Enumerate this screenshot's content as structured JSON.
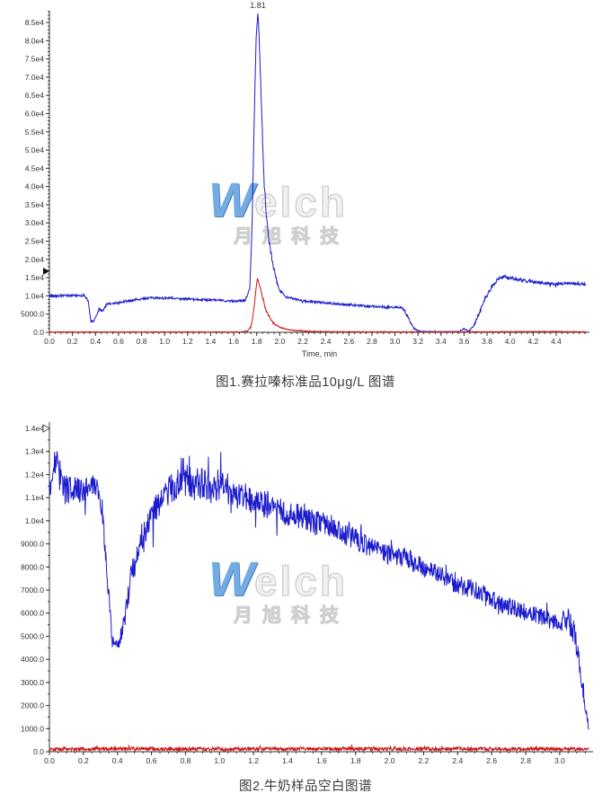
{
  "watermark": {
    "brand_initial": "W",
    "brand_rest": "elch",
    "subtitle": "月旭科技",
    "brand_color": "#5a9ede",
    "outline_color": "#c3c3c3"
  },
  "chart_data": [
    {
      "type": "line",
      "caption": "图1.赛拉嗪标准品10μg/L 图谱",
      "xlabel": "Time, min",
      "ylabel": "",
      "xlim": [
        0,
        4.66
      ],
      "ylim": [
        0,
        88500
      ],
      "x_major": 0.2,
      "x_minor": 0.05,
      "x_tick_labels": [
        "0.0",
        "0.2",
        "0.4",
        "0.6",
        "0.8",
        "1.0",
        "1.2",
        "1.4",
        "1.6",
        "1.8",
        "2.0",
        "2.2",
        "2.4",
        "2.6",
        "2.8",
        "3.0",
        "3.2",
        "3.4",
        "3.6",
        "3.8",
        "4.0",
        "4.2",
        "4.4"
      ],
      "y_major": 5000,
      "y_minor": 1000,
      "y_tick_labels": [
        "0.0",
        "5000.0",
        "1.0e4",
        "1.5e4",
        "2.0e4",
        "2.5e4",
        "3.0e4",
        "3.5e4",
        "4.0e4",
        "4.5e4",
        "5.0e4",
        "5.5e4",
        "6.0e4",
        "6.5e4",
        "7.0e4",
        "7.5e4",
        "8.0e4",
        "8.5e4"
      ],
      "annotations": [
        {
          "x": 1.81,
          "y": 88000,
          "text": "1.81"
        }
      ],
      "axis_marker": {
        "value": 16750,
        "style": "filled"
      },
      "axis_color": "#333333",
      "series": [
        {
          "name": "trace-blue",
          "color": "#1b1bcc",
          "seed": 42,
          "points": [
            [
              0.0,
              10000,
              350
            ],
            [
              0.3,
              10100,
              350
            ],
            [
              0.335,
              8800,
              400
            ],
            [
              0.36,
              2900,
              200
            ],
            [
              0.39,
              3300,
              250
            ],
            [
              0.43,
              6300,
              400
            ],
            [
              0.46,
              5800,
              350
            ],
            [
              0.5,
              7700,
              300
            ],
            [
              0.6,
              8100,
              300
            ],
            [
              0.7,
              8700,
              300
            ],
            [
              0.85,
              9400,
              300
            ],
            [
              1.0,
              9400,
              300
            ],
            [
              1.2,
              9100,
              300
            ],
            [
              1.4,
              8900,
              300
            ],
            [
              1.6,
              8500,
              300
            ],
            [
              1.7,
              8700,
              300
            ],
            [
              1.74,
              12000,
              500
            ],
            [
              1.76,
              30000,
              800
            ],
            [
              1.78,
              62000,
              1000
            ],
            [
              1.795,
              80000,
              800
            ],
            [
              1.81,
              88000,
              300
            ],
            [
              1.825,
              78000,
              800
            ],
            [
              1.84,
              62000,
              1200
            ],
            [
              1.86,
              45000,
              1200
            ],
            [
              1.88,
              33000,
              1000
            ],
            [
              1.91,
              24000,
              900
            ],
            [
              1.94,
              19000,
              800
            ],
            [
              1.97,
              14500,
              600
            ],
            [
              2.0,
              11500,
              400
            ],
            [
              2.05,
              9800,
              350
            ],
            [
              2.15,
              8900,
              300
            ],
            [
              2.3,
              8300,
              300
            ],
            [
              2.5,
              7800,
              300
            ],
            [
              2.7,
              7300,
              300
            ],
            [
              2.9,
              6900,
              300
            ],
            [
              3.05,
              6900,
              350
            ],
            [
              3.08,
              6200,
              400
            ],
            [
              3.12,
              3500,
              400
            ],
            [
              3.17,
              900,
              200
            ],
            [
              3.22,
              250,
              80
            ],
            [
              3.4,
              180,
              60
            ],
            [
              3.56,
              200,
              80
            ],
            [
              3.6,
              900,
              250
            ],
            [
              3.64,
              300,
              100
            ],
            [
              3.68,
              1500,
              300
            ],
            [
              3.72,
              4500,
              500
            ],
            [
              3.78,
              9000,
              600
            ],
            [
              3.84,
              12500,
              600
            ],
            [
              3.9,
              14800,
              500
            ],
            [
              3.96,
              15300,
              500
            ],
            [
              4.05,
              14600,
              450
            ],
            [
              4.15,
              14000,
              450
            ],
            [
              4.25,
              13700,
              400
            ],
            [
              4.35,
              13300,
              400
            ],
            [
              4.55,
              13400,
              400
            ],
            [
              4.66,
              13200,
              400
            ]
          ]
        },
        {
          "name": "trace-red",
          "color": "#cc1414",
          "seed": 7,
          "points": [
            [
              0.0,
              90,
              60
            ],
            [
              1.65,
              100,
              60
            ],
            [
              1.72,
              300,
              100
            ],
            [
              1.75,
              1500,
              200
            ],
            [
              1.77,
              5000,
              300
            ],
            [
              1.79,
              11000,
              400
            ],
            [
              1.805,
              14800,
              200
            ],
            [
              1.82,
              13500,
              300
            ],
            [
              1.85,
              9500,
              400
            ],
            [
              1.88,
              6000,
              300
            ],
            [
              1.92,
              3600,
              250
            ],
            [
              1.96,
              2200,
              200
            ],
            [
              2.0,
              1400,
              150
            ],
            [
              2.05,
              900,
              120
            ],
            [
              2.1,
              600,
              100
            ],
            [
              2.18,
              420,
              150
            ],
            [
              2.25,
              250,
              90
            ],
            [
              2.5,
              150,
              70
            ],
            [
              3.0,
              120,
              60
            ],
            [
              3.5,
              110,
              60
            ],
            [
              4.35,
              200,
              120
            ],
            [
              4.66,
              120,
              60
            ]
          ]
        }
      ]
    },
    {
      "type": "line",
      "caption": "图2.牛奶样品空白图谱",
      "xlabel": "",
      "ylabel": "",
      "xlim": [
        0,
        3.2
      ],
      "ylim": [
        0,
        14200
      ],
      "x_major": 0.2,
      "x_minor": 0.05,
      "x_tick_labels": [
        "0.0",
        "0.2",
        "0.4",
        "0.6",
        "0.8",
        "1.0",
        "1.2",
        "1.4",
        "1.6",
        "1.8",
        "2.0",
        "2.2",
        "2.4",
        "2.6",
        "2.8",
        "3.0"
      ],
      "y_major": 1000,
      "y_minor": 500,
      "y_tick_labels": [
        "0.0",
        "1000.0",
        "2000.0",
        "3000.0",
        "4000.0",
        "5000.0",
        "6000.0",
        "7000.0",
        "8000.0",
        "9000.0",
        "1.0e4",
        "1.1e4",
        "1.2e4",
        "1.3e4",
        "1.4e4"
      ],
      "annotations": [],
      "axis_marker": {
        "value": 14000,
        "style": "open"
      },
      "axis_color": "#333333",
      "series": [
        {
          "name": "trace-blue",
          "color": "#1b1bcc",
          "seed": 99,
          "points": [
            [
              0.0,
              11600,
              600
            ],
            [
              0.04,
              12600,
              700
            ],
            [
              0.08,
              11400,
              700
            ],
            [
              0.15,
              11300,
              600
            ],
            [
              0.22,
              11400,
              600
            ],
            [
              0.28,
              11500,
              500
            ],
            [
              0.31,
              10500,
              400
            ],
            [
              0.34,
              7500,
              500
            ],
            [
              0.37,
              4800,
              300
            ],
            [
              0.4,
              4500,
              250
            ],
            [
              0.44,
              5600,
              400
            ],
            [
              0.48,
              7600,
              500
            ],
            [
              0.53,
              9000,
              500
            ],
            [
              0.58,
              9800,
              550
            ],
            [
              0.63,
              10600,
              600
            ],
            [
              0.68,
              11200,
              650
            ],
            [
              0.74,
              11600,
              700
            ],
            [
              0.78,
              12000,
              800
            ],
            [
              0.84,
              11500,
              700
            ],
            [
              0.9,
              11700,
              700
            ],
            [
              0.96,
              11300,
              650
            ],
            [
              1.02,
              11800,
              800
            ],
            [
              1.08,
              11000,
              650
            ],
            [
              1.15,
              11100,
              600
            ],
            [
              1.22,
              10700,
              600
            ],
            [
              1.3,
              10700,
              600
            ],
            [
              1.38,
              10300,
              550
            ],
            [
              1.46,
              10200,
              550
            ],
            [
              1.54,
              9900,
              550
            ],
            [
              1.62,
              9900,
              500
            ],
            [
              1.7,
              9600,
              500
            ],
            [
              1.78,
              9300,
              500
            ],
            [
              1.86,
              9000,
              500
            ],
            [
              1.94,
              8700,
              450
            ],
            [
              2.02,
              8500,
              450
            ],
            [
              2.1,
              8400,
              450
            ],
            [
              2.18,
              8000,
              450
            ],
            [
              2.26,
              7900,
              400
            ],
            [
              2.34,
              7400,
              400
            ],
            [
              2.42,
              7200,
              400
            ],
            [
              2.5,
              7000,
              400
            ],
            [
              2.58,
              6700,
              400
            ],
            [
              2.66,
              6400,
              400
            ],
            [
              2.74,
              6200,
              380
            ],
            [
              2.82,
              6000,
              380
            ],
            [
              2.9,
              5800,
              380
            ],
            [
              2.98,
              5600,
              360
            ],
            [
              3.04,
              5700,
              500
            ],
            [
              3.08,
              5400,
              700
            ],
            [
              3.11,
              4200,
              400
            ],
            [
              3.13,
              3000,
              300
            ],
            [
              3.15,
              1900,
              200
            ],
            [
              3.17,
              1100,
              150
            ]
          ]
        },
        {
          "name": "trace-red",
          "color": "#cc1414",
          "seed": 5,
          "points": [
            [
              0.0,
              110,
              70
            ],
            [
              0.5,
              130,
              90
            ],
            [
              1.0,
              120,
              80
            ],
            [
              1.5,
              120,
              80
            ],
            [
              2.0,
              130,
              90
            ],
            [
              2.5,
              120,
              80
            ],
            [
              3.0,
              120,
              80
            ],
            [
              3.17,
              100,
              60
            ]
          ]
        }
      ]
    }
  ]
}
